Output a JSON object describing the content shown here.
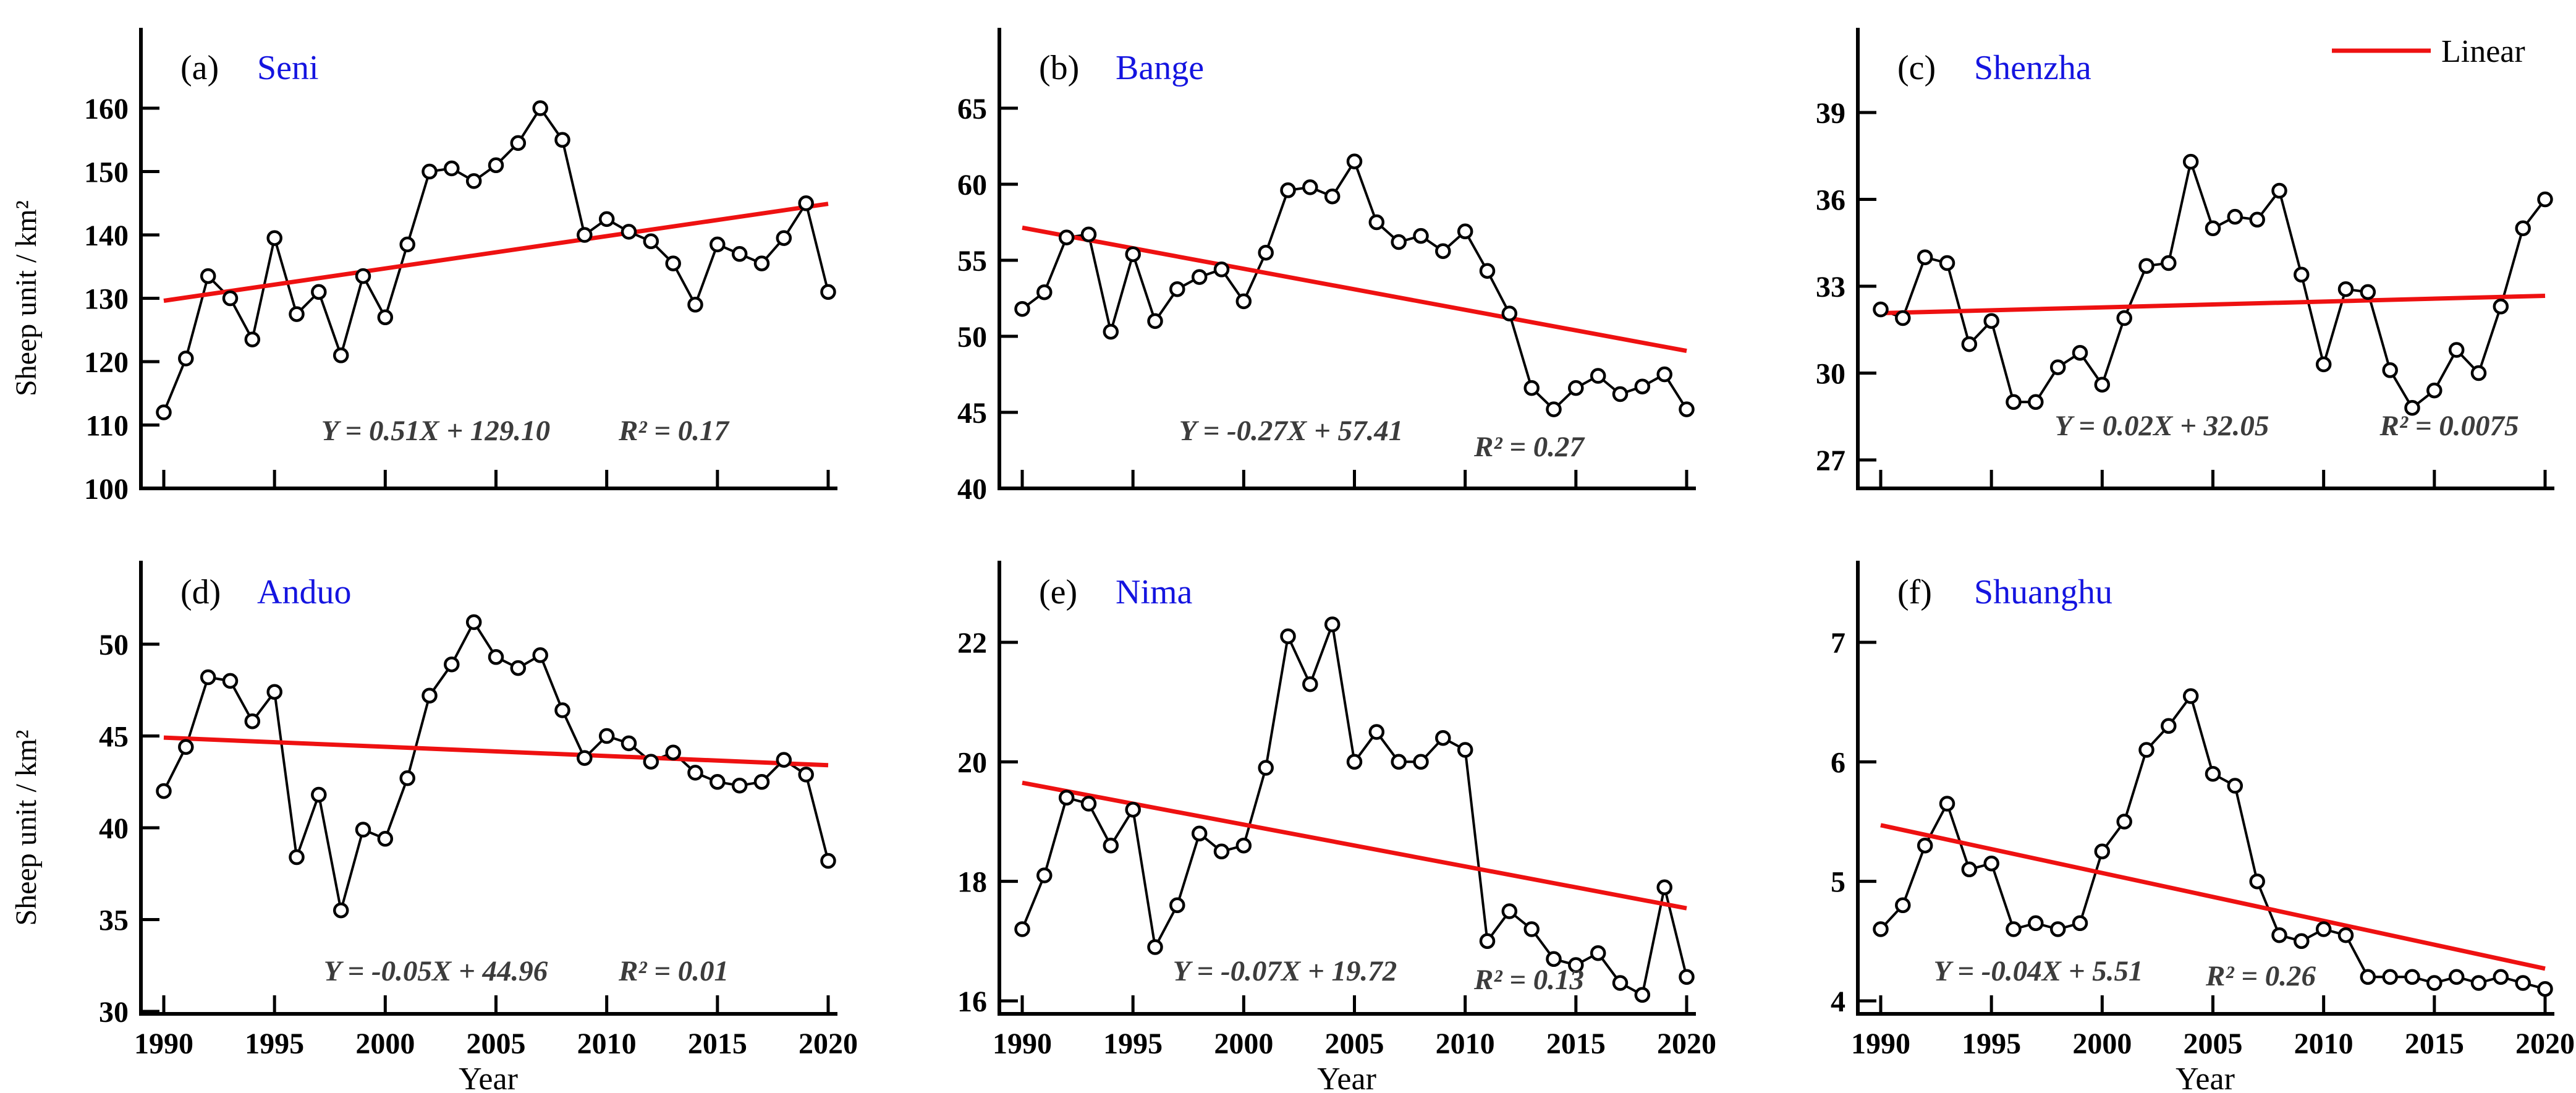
{
  "figure": {
    "y_axis_title": "Sheep unit / km²",
    "x_axis_title": "Year",
    "legend": {
      "label": "Linear"
    },
    "colors": {
      "series": "#000000",
      "trend": "#ee1111",
      "region_title": "#1414e0",
      "equation_text": "#3c3c3c",
      "background": "#ffffff"
    }
  },
  "chart_data": [
    {
      "id": "a",
      "type": "line",
      "label": "(a)",
      "region": "Seni",
      "x_start": 1990,
      "x_end": 2020,
      "xticks": [
        1990,
        1995,
        2000,
        2005,
        2010,
        2015,
        2020
      ],
      "yticks": [
        100,
        110,
        120,
        130,
        140,
        150,
        160
      ],
      "ylim": [
        100,
        160
      ],
      "values": [
        112,
        120.5,
        133.5,
        130,
        123.5,
        139.5,
        127.5,
        131,
        121,
        133.5,
        127,
        138.5,
        150,
        150.5,
        148.5,
        151,
        154.5,
        160,
        155,
        140,
        142.5,
        140.5,
        139,
        135.5,
        129,
        138.5,
        137,
        135.5,
        139.5,
        145,
        131
      ],
      "trend": {
        "slope": 0.51,
        "intercept": 129.1
      },
      "equation": "Y = 0.51X + 129.10",
      "r_squared": "R² = 0.17",
      "grid": false,
      "legend_visible": false
    },
    {
      "id": "b",
      "type": "line",
      "label": "(b)",
      "region": "Bange",
      "x_start": 1990,
      "x_end": 2020,
      "xticks": [
        1990,
        1995,
        2000,
        2005,
        2010,
        2015,
        2020
      ],
      "yticks": [
        40,
        45,
        50,
        55,
        60,
        65
      ],
      "ylim": [
        40,
        65
      ],
      "values": [
        51.8,
        52.9,
        56.5,
        56.7,
        50.3,
        55.4,
        51.0,
        53.1,
        53.9,
        54.4,
        52.3,
        55.5,
        59.6,
        59.8,
        59.2,
        61.5,
        57.5,
        56.2,
        56.6,
        55.6,
        56.9,
        54.3,
        51.5,
        46.6,
        45.2,
        46.6,
        47.4,
        46.2,
        46.7,
        47.5,
        45.2
      ],
      "trend": {
        "slope": -0.27,
        "intercept": 57.41
      },
      "equation": "Y = -0.27X + 57.41",
      "r_squared": "R² = 0.27",
      "grid": false,
      "legend_visible": false
    },
    {
      "id": "c",
      "type": "line",
      "label": "(c)",
      "region": "Shenzha",
      "x_start": 1990,
      "x_end": 2020,
      "xticks": [
        1990,
        1995,
        2000,
        2005,
        2010,
        2015,
        2020
      ],
      "yticks": [
        27,
        30,
        33,
        36,
        39
      ],
      "ylim": [
        27,
        39
      ],
      "values": [
        32.2,
        31.9,
        34.0,
        33.8,
        31.0,
        31.8,
        29.0,
        29.0,
        30.2,
        30.7,
        29.6,
        31.9,
        33.7,
        33.8,
        37.3,
        35.0,
        35.4,
        35.3,
        36.3,
        33.4,
        30.3,
        32.9,
        32.8,
        30.1,
        28.8,
        29.4,
        30.8,
        30.0,
        32.3,
        35.0,
        36.0
      ],
      "trend": {
        "slope": 0.02,
        "intercept": 32.05
      },
      "equation": "Y = 0.02X + 32.05",
      "r_squared": "R² = 0.0075",
      "grid": false,
      "legend_visible": true
    },
    {
      "id": "d",
      "type": "line",
      "label": "(d)",
      "region": "Anduo",
      "x_start": 1990,
      "x_end": 2020,
      "xticks": [
        1990,
        1995,
        2000,
        2005,
        2010,
        2015,
        2020
      ],
      "yticks": [
        30,
        35,
        40,
        45,
        50
      ],
      "ylim": [
        30,
        50
      ],
      "values": [
        42.0,
        44.4,
        48.2,
        48.0,
        45.8,
        47.4,
        38.4,
        41.8,
        35.5,
        39.9,
        39.4,
        42.7,
        47.2,
        48.9,
        51.2,
        49.3,
        48.7,
        49.4,
        46.4,
        43.8,
        45.0,
        44.6,
        43.6,
        44.1,
        43.0,
        42.5,
        42.3,
        42.5,
        43.7,
        42.9,
        38.2
      ],
      "trend": {
        "slope": -0.05,
        "intercept": 44.96
      },
      "equation": "Y = -0.05X + 44.96",
      "r_squared": "R² = 0.01",
      "grid": false,
      "legend_visible": false
    },
    {
      "id": "e",
      "type": "line",
      "label": "(e)",
      "region": "Nima",
      "x_start": 1990,
      "x_end": 2020,
      "xticks": [
        1990,
        1995,
        2000,
        2005,
        2010,
        2015,
        2020
      ],
      "yticks": [
        16,
        18,
        20,
        22
      ],
      "ylim": [
        16,
        22
      ],
      "values": [
        17.2,
        18.1,
        19.4,
        19.3,
        18.6,
        19.2,
        16.9,
        17.6,
        18.8,
        18.5,
        18.6,
        19.9,
        22.1,
        21.3,
        22.3,
        20.0,
        20.5,
        20.0,
        20.0,
        20.4,
        20.2,
        17.0,
        17.5,
        17.2,
        16.7,
        16.6,
        16.8,
        16.3,
        16.1,
        17.9,
        16.4
      ],
      "trend": {
        "slope": -0.07,
        "intercept": 19.72
      },
      "equation": "Y = -0.07X + 19.72",
      "r_squared": "R² = 0.13",
      "grid": false,
      "legend_visible": false
    },
    {
      "id": "f",
      "type": "line",
      "label": "(f)",
      "region": "Shuanghu",
      "x_start": 1990,
      "x_end": 2020,
      "xticks": [
        1990,
        1995,
        2000,
        2005,
        2010,
        2015,
        2020
      ],
      "yticks": [
        4,
        5,
        6,
        7
      ],
      "ylim": [
        4,
        7
      ],
      "values": [
        4.6,
        4.8,
        5.3,
        5.65,
        5.1,
        5.15,
        4.6,
        4.65,
        4.6,
        4.65,
        5.25,
        5.5,
        6.1,
        6.3,
        6.55,
        5.9,
        5.8,
        5.0,
        4.55,
        4.5,
        4.6,
        4.55,
        4.2,
        4.2,
        4.2,
        4.15,
        4.2,
        4.15,
        4.2,
        4.15,
        4.1
      ],
      "trend": {
        "slope": -0.04,
        "intercept": 5.51
      },
      "equation": "Y = -0.04X + 5.51",
      "r_squared": "R² = 0.26",
      "grid": false,
      "legend_visible": false
    }
  ]
}
